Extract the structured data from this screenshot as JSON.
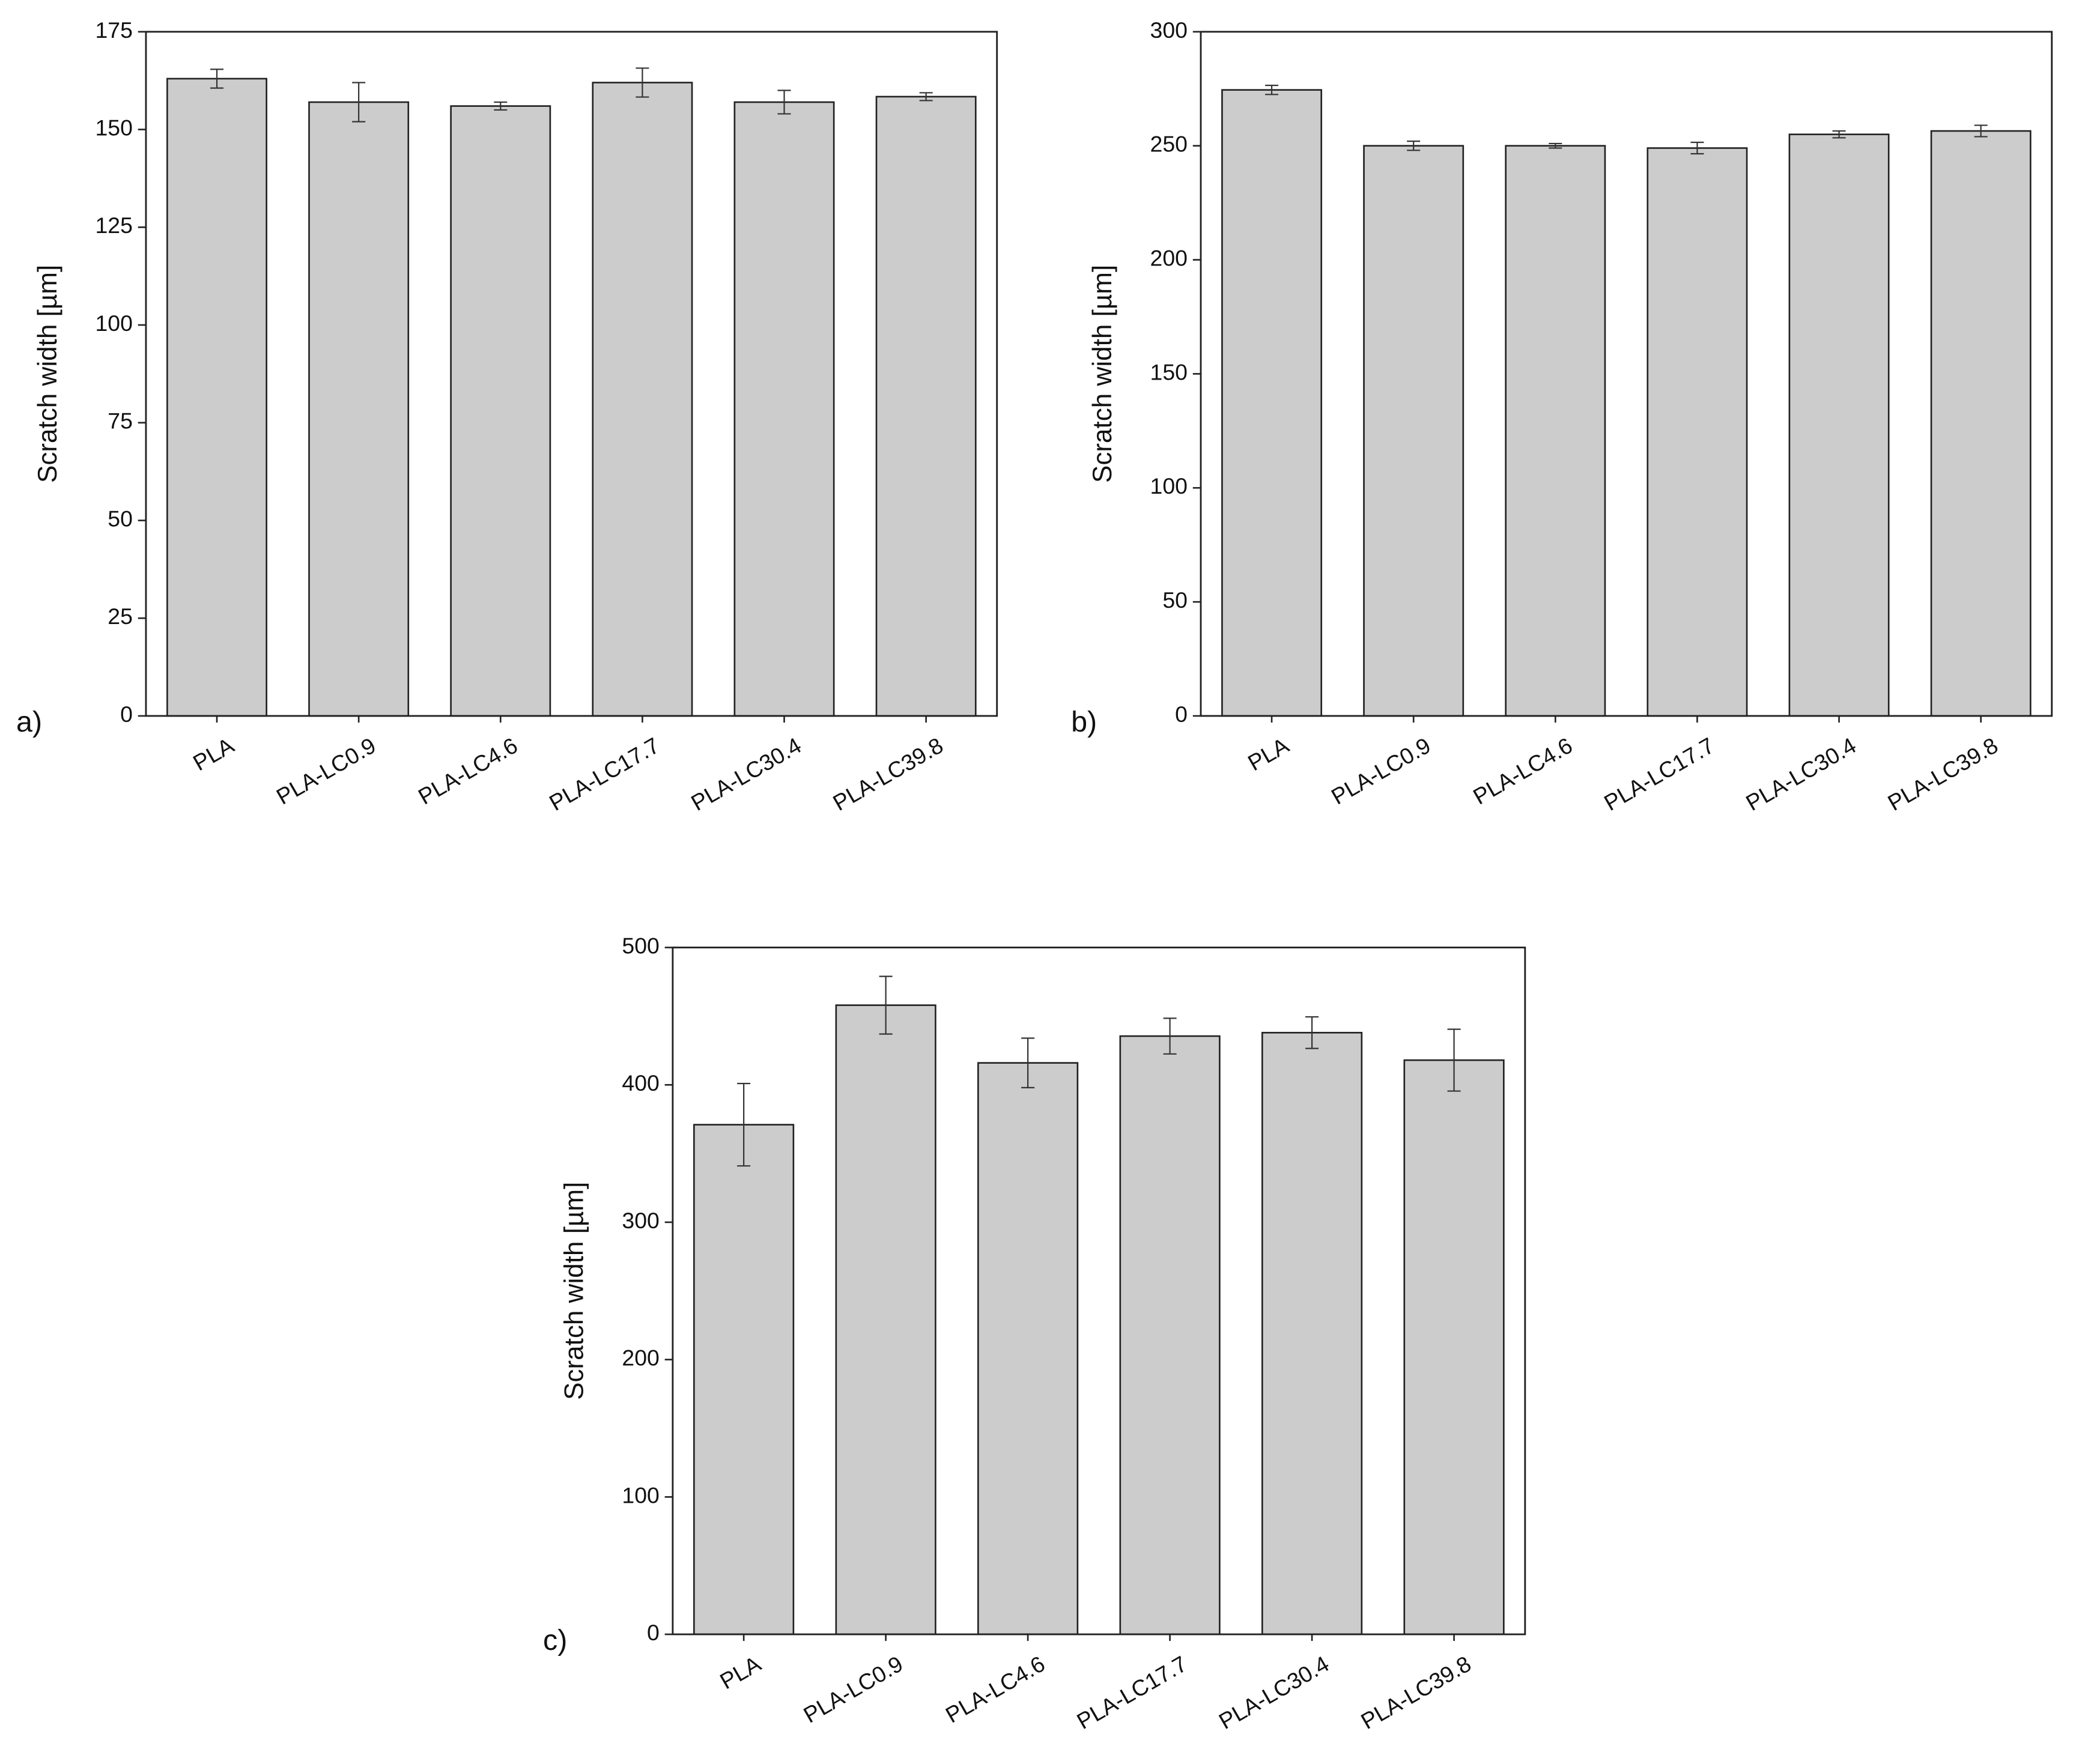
{
  "chart_data": [
    {
      "type": "bar",
      "panel_label": "a)",
      "y_label": "Scratch width [µm]",
      "categories": [
        "PLA",
        "PLA-LC0.9",
        "PLA-LC4.6",
        "PLA-LC17.7",
        "PLA-LC30.4",
        "PLA-LC39.8"
      ],
      "values": [
        163,
        157,
        156,
        162,
        157,
        158.4
      ],
      "errors": [
        2.4,
        5,
        1,
        3.7,
        3,
        1
      ],
      "color": "#cccccc",
      "ylim": [
        0,
        175
      ],
      "yticks": [
        0,
        25,
        50,
        75,
        100,
        125,
        150,
        175
      ]
    },
    {
      "type": "bar",
      "panel_label": "b)",
      "y_label": "Scratch width [µm]",
      "categories": [
        "PLA",
        "PLA-LC0.9",
        "PLA-LC4.6",
        "PLA-LC17.7",
        "PLA-LC30.4",
        "PLA-LC39.8"
      ],
      "values": [
        274.5,
        250,
        250,
        249,
        255,
        256.5
      ],
      "errors": [
        2,
        2,
        1,
        2.5,
        1.5,
        2.5
      ],
      "color": "#cccccc",
      "ylim": [
        0,
        300
      ],
      "yticks": [
        0,
        50,
        100,
        150,
        200,
        250,
        300
      ]
    },
    {
      "type": "bar",
      "panel_label": "c)",
      "y_label": "Scratch width [µm]",
      "categories": [
        "PLA",
        "PLA-LC0.9",
        "PLA-LC4.6",
        "PLA-LC17.7",
        "PLA-LC30.4",
        "PLA-LC39.8"
      ],
      "values": [
        371,
        458,
        416,
        435.5,
        438,
        418
      ],
      "errors": [
        30,
        21,
        18,
        13,
        11.5,
        22.5
      ],
      "color": "#cccccc",
      "ylim": [
        0,
        500
      ],
      "yticks": [
        0,
        100,
        200,
        300,
        400,
        500
      ]
    }
  ]
}
